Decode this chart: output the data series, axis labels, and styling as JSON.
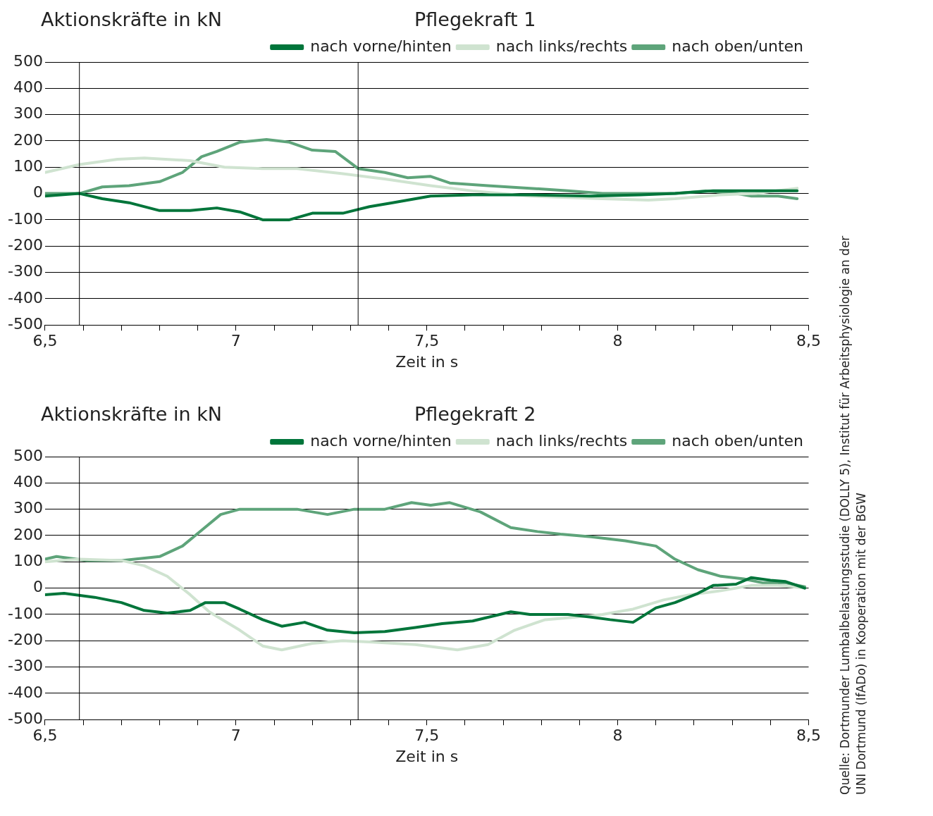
{
  "chart_data": [
    {
      "type": "line",
      "title": "Pflegekraft 1",
      "ylabel": "Aktionskräfte in kN",
      "xlabel": "Zeit in s",
      "xlim": [
        6.5,
        8.5
      ],
      "xticks": [
        {
          "value": 6.5,
          "label": "6,5"
        },
        {
          "value": 6.6,
          "label": null
        },
        {
          "value": 6.7,
          "label": null
        },
        {
          "value": 6.8,
          "label": null
        },
        {
          "value": 6.9,
          "label": null
        },
        {
          "value": 7,
          "label": "7"
        },
        {
          "value": 7.1,
          "label": null
        },
        {
          "value": 7.2,
          "label": null
        },
        {
          "value": 7.3,
          "label": null
        },
        {
          "value": 7.4,
          "label": null
        },
        {
          "value": 7.5,
          "label": "7,5"
        },
        {
          "value": 7.6,
          "label": null
        },
        {
          "value": 7.7,
          "label": null
        },
        {
          "value": 7.8,
          "label": null
        },
        {
          "value": 7.9,
          "label": null
        },
        {
          "value": 8,
          "label": "8"
        },
        {
          "value": 8.1,
          "label": null
        },
        {
          "value": 8.2,
          "label": null
        },
        {
          "value": 8.3,
          "label": null
        },
        {
          "value": 8.4,
          "label": null
        },
        {
          "value": 8.5,
          "label": "8,5"
        }
      ],
      "ylim": [
        -500,
        500
      ],
      "yticks": [
        -500,
        -400,
        -300,
        -200,
        -100,
        0,
        100,
        200,
        300,
        400,
        500
      ],
      "grid": "y",
      "legend": "top right",
      "marker": "none",
      "line_style": "solid",
      "ref_lines": [
        {
          "axis": "x",
          "value": 6.59,
          "color": "#000000"
        },
        {
          "axis": "x",
          "value": 7.32,
          "color": "#000000"
        }
      ],
      "annotations": [
        "Quelle: Dortmunder Lumbalbelastungsstudie (DOLLY 5), Institut für Arbeitsphysiologie an der UNI Dortmund (IfADo) in Kooperation mit der BGW"
      ],
      "series": [
        {
          "name": "nach vorne/hinten",
          "color": "#00753a",
          "x": [
            6.5,
            6.59,
            6.65,
            6.72,
            6.8,
            6.88,
            6.95,
            7.01,
            7.07,
            7.14,
            7.2,
            7.28,
            7.35,
            7.41,
            7.51,
            7.62,
            7.77,
            7.93,
            8.06,
            8.15,
            8.25,
            8.35,
            8.47
          ],
          "values": [
            -10,
            0,
            -20,
            -35,
            -65,
            -65,
            -55,
            -70,
            -100,
            -100,
            -75,
            -75,
            -50,
            -35,
            -10,
            -5,
            -5,
            -10,
            -5,
            0,
            10,
            10,
            10
          ]
        },
        {
          "name": "nach links/rechts",
          "color": "#cfe3d0",
          "x": [
            6.5,
            6.59,
            6.69,
            6.76,
            6.88,
            6.97,
            7.07,
            7.16,
            7.28,
            7.39,
            7.51,
            7.62,
            7.77,
            7.96,
            8.08,
            8.15,
            8.27,
            8.36,
            8.47
          ],
          "values": [
            80,
            110,
            130,
            135,
            125,
            100,
            95,
            95,
            75,
            55,
            30,
            10,
            -10,
            -20,
            -25,
            -20,
            -5,
            0,
            20
          ]
        },
        {
          "name": "nach oben/unten",
          "color": "#5ea47a",
          "x": [
            6.5,
            6.59,
            6.65,
            6.72,
            6.8,
            6.86,
            6.91,
            6.95,
            7.01,
            7.08,
            7.14,
            7.2,
            7.26,
            7.32,
            7.39,
            7.45,
            7.51,
            7.56,
            7.66,
            7.77,
            7.87,
            7.96,
            8.08,
            8.15,
            8.23,
            8.31,
            8.35,
            8.42,
            8.47
          ],
          "values": [
            0,
            0,
            25,
            30,
            45,
            80,
            140,
            160,
            195,
            205,
            195,
            165,
            160,
            95,
            80,
            60,
            65,
            40,
            30,
            20,
            10,
            0,
            0,
            0,
            10,
            0,
            -10,
            -10,
            -20
          ]
        }
      ]
    },
    {
      "type": "line",
      "title": "Pflegekraft 2",
      "ylabel": "Aktionskräfte in kN",
      "xlabel": "Zeit in s",
      "xlim": [
        6.5,
        8.5
      ],
      "xticks": [
        {
          "value": 6.5,
          "label": "6,5"
        },
        {
          "value": 6.6,
          "label": null
        },
        {
          "value": 6.7,
          "label": null
        },
        {
          "value": 6.8,
          "label": null
        },
        {
          "value": 6.9,
          "label": null
        },
        {
          "value": 7,
          "label": "7"
        },
        {
          "value": 7.1,
          "label": null
        },
        {
          "value": 7.2,
          "label": null
        },
        {
          "value": 7.3,
          "label": null
        },
        {
          "value": 7.4,
          "label": null
        },
        {
          "value": 7.5,
          "label": "7,5"
        },
        {
          "value": 7.6,
          "label": null
        },
        {
          "value": 7.7,
          "label": null
        },
        {
          "value": 7.8,
          "label": null
        },
        {
          "value": 7.9,
          "label": null
        },
        {
          "value": 8,
          "label": "8"
        },
        {
          "value": 8.1,
          "label": null
        },
        {
          "value": 8.2,
          "label": null
        },
        {
          "value": 8.3,
          "label": null
        },
        {
          "value": 8.4,
          "label": null
        },
        {
          "value": 8.5,
          "label": "8,5"
        }
      ],
      "ylim": [
        -500,
        500
      ],
      "yticks": [
        -500,
        -400,
        -300,
        -200,
        -100,
        0,
        100,
        200,
        300,
        400,
        500
      ],
      "grid": "y",
      "legend": "top right",
      "marker": "none",
      "line_style": "solid",
      "ref_lines": [
        {
          "axis": "x",
          "value": 6.59,
          "color": "#000000"
        },
        {
          "axis": "x",
          "value": 7.32,
          "color": "#000000"
        }
      ],
      "series": [
        {
          "name": "nach vorne/hinten",
          "color": "#00753a",
          "x": [
            6.5,
            6.55,
            6.63,
            6.7,
            6.76,
            6.82,
            6.88,
            6.92,
            6.97,
            7.01,
            7.07,
            7.12,
            7.18,
            7.24,
            7.31,
            7.39,
            7.47,
            7.54,
            7.62,
            7.72,
            7.77,
            7.87,
            7.93,
            7.98,
            8.04,
            8.1,
            8.15,
            8.21,
            8.25,
            8.31,
            8.35,
            8.4,
            8.44,
            8.49
          ],
          "values": [
            -25,
            -20,
            -35,
            -55,
            -85,
            -95,
            -85,
            -55,
            -55,
            -80,
            -120,
            -145,
            -130,
            -160,
            -170,
            -165,
            -150,
            -135,
            -125,
            -90,
            -100,
            -100,
            -110,
            -120,
            -130,
            -75,
            -55,
            -20,
            10,
            15,
            40,
            30,
            25,
            0
          ]
        },
        {
          "name": "nach links/rechts",
          "color": "#cfe3d0",
          "x": [
            6.5,
            6.59,
            6.7,
            6.76,
            6.82,
            6.88,
            6.93,
            7.01,
            7.07,
            7.12,
            7.2,
            7.28,
            7.35,
            7.47,
            7.58,
            7.66,
            7.73,
            7.81,
            7.89,
            7.96,
            8.04,
            8.12,
            8.19,
            8.27,
            8.35,
            8.42,
            8.49
          ],
          "values": [
            100,
            110,
            105,
            85,
            45,
            -25,
            -90,
            -160,
            -220,
            -235,
            -210,
            -200,
            -205,
            -215,
            -235,
            -215,
            -160,
            -120,
            -110,
            -100,
            -80,
            -45,
            -25,
            -10,
            10,
            10,
            0
          ]
        },
        {
          "name": "nach oben/unten",
          "color": "#5ea47a",
          "x": [
            6.5,
            6.53,
            6.61,
            6.7,
            6.8,
            6.86,
            6.91,
            6.96,
            7.01,
            7.09,
            7.16,
            7.24,
            7.31,
            7.39,
            7.46,
            7.51,
            7.56,
            7.64,
            7.72,
            7.79,
            7.85,
            7.93,
            8.02,
            8.1,
            8.15,
            8.21,
            8.27,
            8.33,
            8.38,
            8.44,
            8.49
          ],
          "values": [
            110,
            120,
            105,
            105,
            120,
            160,
            220,
            280,
            300,
            300,
            300,
            280,
            300,
            300,
            325,
            315,
            325,
            290,
            230,
            215,
            205,
            195,
            180,
            160,
            110,
            70,
            45,
            35,
            20,
            20,
            5
          ]
        }
      ]
    }
  ]
}
